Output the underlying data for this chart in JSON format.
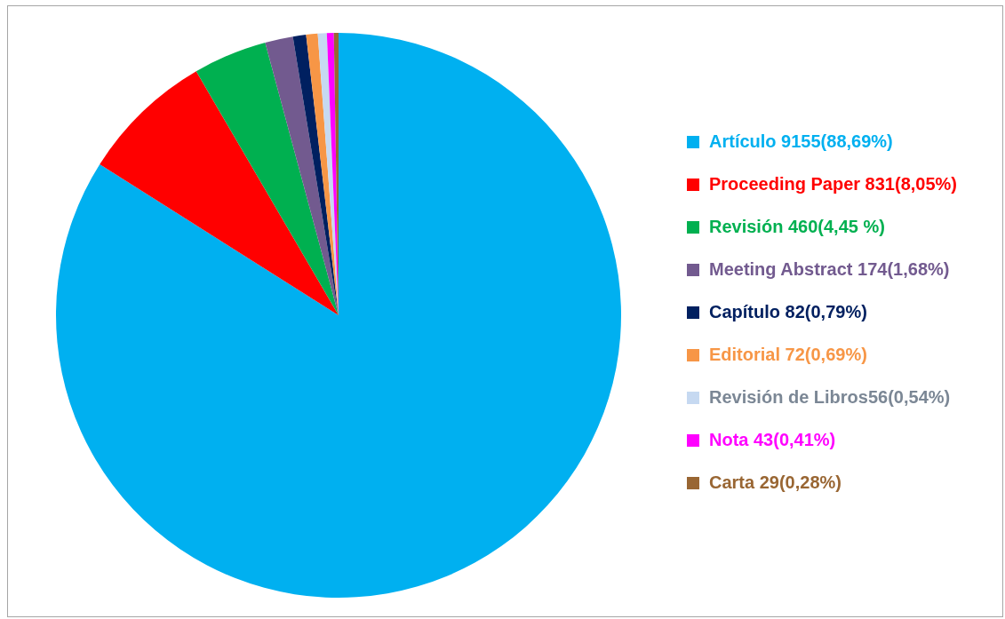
{
  "chart_data": {
    "type": "pie",
    "categories": [
      "Artículo 9155(88,69%)",
      "Proceeding Paper 831(8,05%)",
      "Revisión 460(4,45 %)",
      "Meeting Abstract 174(1,68%)",
      "Capítulo 82(0,79%)",
      "Editorial 72(0,69%)",
      "Revisión de Libros56(0,54%)",
      "Nota 43(0,41%)",
      "Carta 29(0,28%)"
    ],
    "values": [
      9155,
      831,
      460,
      174,
      82,
      72,
      56,
      43,
      29
    ],
    "colors": [
      "#00b0f0",
      "#ff0000",
      "#00b050",
      "#725a8f",
      "#002060",
      "#f79646",
      "#c6d9f1",
      "#ff00ff",
      "#996633"
    ],
    "legend": "right"
  }
}
